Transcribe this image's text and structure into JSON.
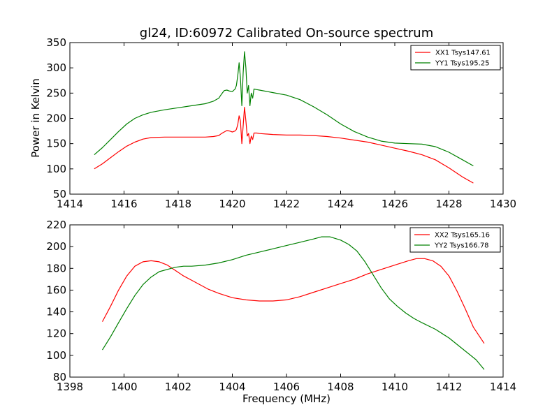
{
  "figure": {
    "title": "gl24, ID:60972 Calibrated On-source spectrum",
    "ylabel": "Power in Kelvin",
    "xlabel": "Frequency (MHz)"
  },
  "colors": {
    "red": "#ff0000",
    "green": "#008000"
  },
  "chart_data": [
    {
      "type": "line",
      "title": "gl24, ID:60972 Calibrated On-source spectrum",
      "ylabel": "Power in Kelvin",
      "xlabel": "",
      "xlim": [
        1414,
        1430
      ],
      "ylim": [
        50,
        350
      ],
      "xticks": [
        1414,
        1416,
        1418,
        1420,
        1422,
        1424,
        1426,
        1428,
        1430
      ],
      "yticks": [
        50,
        100,
        150,
        200,
        250,
        300,
        350
      ],
      "legend_position": "top-right",
      "grid": false,
      "series": [
        {
          "name": "XX1 Tsys147.61",
          "color": "#ff0000",
          "x": [
            1414.9,
            1415.2,
            1415.5,
            1415.8,
            1416.1,
            1416.4,
            1416.7,
            1417.0,
            1417.5,
            1418.0,
            1418.5,
            1419.0,
            1419.3,
            1419.5,
            1419.6,
            1419.7,
            1419.8,
            1419.9,
            1420.0,
            1420.1,
            1420.15,
            1420.2,
            1420.25,
            1420.3,
            1420.35,
            1420.4,
            1420.45,
            1420.5,
            1420.55,
            1420.6,
            1420.65,
            1420.7,
            1420.75,
            1420.8,
            1420.9,
            1421.0,
            1421.5,
            1422.0,
            1422.5,
            1423.0,
            1423.5,
            1424.0,
            1424.5,
            1425.0,
            1425.5,
            1426.0,
            1426.5,
            1427.0,
            1427.5,
            1428.0,
            1428.5,
            1428.9
          ],
          "y": [
            100,
            110,
            122,
            134,
            145,
            153,
            159,
            162,
            163,
            163,
            163,
            163,
            164,
            166,
            170,
            173,
            176,
            175,
            173,
            175,
            178,
            188,
            205,
            195,
            150,
            185,
            222,
            195,
            165,
            170,
            150,
            165,
            158,
            171,
            171,
            170,
            168,
            167,
            167,
            166,
            164,
            161,
            157,
            153,
            147,
            141,
            135,
            128,
            118,
            102,
            84,
            72
          ]
        },
        {
          "name": "YY1 Tsys195.25",
          "color": "#008000",
          "x": [
            1414.9,
            1415.2,
            1415.5,
            1415.8,
            1416.1,
            1416.4,
            1416.7,
            1417.0,
            1417.5,
            1418.0,
            1418.5,
            1419.0,
            1419.3,
            1419.5,
            1419.6,
            1419.7,
            1419.8,
            1419.9,
            1420.0,
            1420.1,
            1420.15,
            1420.2,
            1420.25,
            1420.3,
            1420.35,
            1420.4,
            1420.45,
            1420.5,
            1420.55,
            1420.6,
            1420.65,
            1420.7,
            1420.75,
            1420.8,
            1420.9,
            1421.0,
            1421.5,
            1422.0,
            1422.5,
            1423.0,
            1423.5,
            1424.0,
            1424.5,
            1425.0,
            1425.5,
            1426.0,
            1426.5,
            1427.0,
            1427.5,
            1428.0,
            1428.5,
            1428.9
          ],
          "y": [
            128,
            142,
            158,
            174,
            189,
            200,
            207,
            212,
            217,
            221,
            225,
            229,
            234,
            240,
            248,
            255,
            256,
            254,
            253,
            258,
            265,
            285,
            310,
            280,
            225,
            290,
            332,
            300,
            250,
            265,
            225,
            250,
            240,
            258,
            257,
            256,
            251,
            246,
            237,
            223,
            207,
            189,
            174,
            163,
            155,
            151,
            150,
            149,
            144,
            133,
            118,
            106
          ]
        }
      ]
    },
    {
      "type": "line",
      "title": "",
      "xlabel": "Frequency (MHz)",
      "ylabel": "",
      "xlim": [
        1398,
        1414
      ],
      "ylim": [
        80,
        220
      ],
      "xticks": [
        1398,
        1400,
        1402,
        1404,
        1406,
        1408,
        1410,
        1412,
        1414
      ],
      "yticks": [
        80,
        100,
        120,
        140,
        160,
        180,
        200,
        220
      ],
      "legend_position": "top-right",
      "grid": false,
      "series": [
        {
          "name": "XX2 Tsys165.16",
          "color": "#ff0000",
          "x": [
            1399.2,
            1399.5,
            1399.8,
            1400.1,
            1400.4,
            1400.7,
            1401.0,
            1401.3,
            1401.6,
            1401.9,
            1402.2,
            1402.5,
            1402.8,
            1403.1,
            1403.5,
            1404.0,
            1404.5,
            1405.0,
            1405.5,
            1406.0,
            1406.5,
            1407.0,
            1407.5,
            1408.0,
            1408.5,
            1409.0,
            1409.5,
            1410.0,
            1410.5,
            1410.8,
            1411.1,
            1411.4,
            1411.7,
            1412.0,
            1412.3,
            1412.6,
            1412.9,
            1413.3
          ],
          "y": [
            131,
            145,
            160,
            173,
            182,
            186,
            187,
            186,
            183,
            178,
            173,
            169,
            165,
            161,
            157,
            153,
            151,
            150,
            150,
            151,
            154,
            158,
            162,
            166,
            170,
            175,
            179,
            183,
            187,
            189,
            189,
            187,
            182,
            173,
            159,
            143,
            126,
            111
          ]
        },
        {
          "name": "YY2 Tsys166.78",
          "color": "#008000",
          "x": [
            1399.2,
            1399.5,
            1399.8,
            1400.1,
            1400.4,
            1400.7,
            1401.0,
            1401.3,
            1401.6,
            1401.9,
            1402.2,
            1402.5,
            1403.0,
            1403.5,
            1404.0,
            1404.5,
            1405.0,
            1405.5,
            1406.0,
            1406.5,
            1407.0,
            1407.3,
            1407.6,
            1408.0,
            1408.3,
            1408.6,
            1408.9,
            1409.2,
            1409.5,
            1409.8,
            1410.1,
            1410.4,
            1410.7,
            1411.0,
            1411.5,
            1412.0,
            1412.5,
            1413.0,
            1413.3
          ],
          "y": [
            105,
            117,
            130,
            143,
            155,
            165,
            172,
            177,
            179,
            181,
            182,
            182,
            183,
            185,
            188,
            192,
            195,
            198,
            201,
            204,
            207,
            209,
            209,
            206,
            202,
            196,
            186,
            174,
            162,
            152,
            145,
            139,
            134,
            130,
            124,
            116,
            106,
            96,
            87
          ]
        }
      ]
    }
  ]
}
